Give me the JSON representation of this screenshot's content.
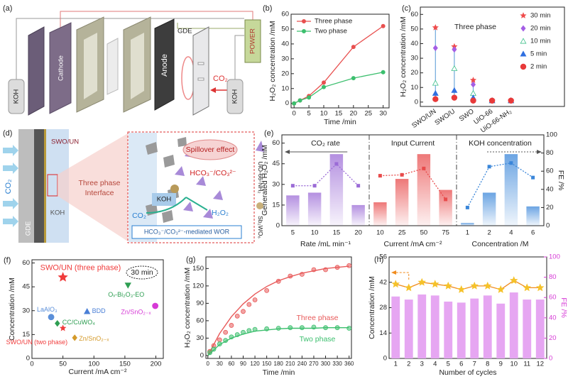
{
  "diagrams": {
    "a": {
      "panel": "(a)",
      "labels": [
        "KOH",
        "Cathode",
        "GDE",
        "Anode",
        "CO₂",
        "POWER",
        "KOH"
      ]
    },
    "d": {
      "panel": "(d)",
      "labels": [
        "SWO/UN",
        "CO₂",
        "Three phase",
        "Interface",
        "GDE",
        "KOH",
        "Spillover effect",
        "KOH",
        "HCO₃⁻/CO₃²⁻",
        "CO₂",
        "H₂O₂",
        "HCO₃⁻/CO₃²⁻-mediated WOR",
        "UiO-66-NH₂",
        "Sb₂WO₆"
      ]
    }
  },
  "chart_data": [
    {
      "type": "line",
      "panel": "(b)",
      "xlabel": "Time /min",
      "ylabel": "H₂O₂ concentration /mM",
      "x": [
        0,
        2,
        5,
        10,
        20,
        30
      ],
      "xlim": [
        -1,
        32
      ],
      "xticks": [
        0,
        5,
        10,
        15,
        20,
        25,
        30
      ],
      "ylim": [
        -3,
        60
      ],
      "yticks": [
        0,
        10,
        20,
        30,
        40,
        50,
        60
      ],
      "series": [
        {
          "name": "Three phase",
          "color": "#e8504f",
          "values": [
            0,
            2,
            5,
            14,
            38,
            52
          ]
        },
        {
          "name": "Two phase",
          "color": "#3cbf6e",
          "values": [
            0,
            2,
            4,
            11,
            17,
            21
          ]
        }
      ]
    },
    {
      "type": "dot",
      "panel": "(c)",
      "ylabel": "H₂O₂ concentration /mM",
      "annotation": "Three phase",
      "categories": [
        "SWO/UN",
        "SWO/U",
        "SWO",
        "UiO-66",
        "UiO-66-NH₂"
      ],
      "stem_color": "#6fa8dc",
      "ylim": [
        -3,
        65
      ],
      "yticks": [
        0,
        10,
        20,
        30,
        40,
        50,
        60
      ],
      "series": [
        {
          "name": "30 min",
          "color": "#ef4b4b",
          "marker": "star",
          "values": [
            51,
            38,
            15,
            1,
            1
          ]
        },
        {
          "name": "20 min",
          "color": "#a45ee5",
          "marker": "diamond",
          "values": [
            37,
            36,
            12,
            1,
            1
          ]
        },
        {
          "name": "10 min",
          "color": "#3cbf8a",
          "marker": "triangle-open",
          "values": [
            13,
            23,
            6,
            1,
            1
          ]
        },
        {
          "name": "5 min",
          "color": "#2f6fe0",
          "marker": "triangle",
          "values": [
            6,
            8,
            3,
            1,
            1
          ]
        },
        {
          "name": "2 min",
          "color": "#e83a3a",
          "marker": "circle",
          "values": [
            2,
            3,
            1,
            1,
            1
          ]
        }
      ]
    },
    {
      "type": "combo",
      "panel": "(e)",
      "ylabel": "Generated H₂O₂ /mM",
      "y2label": "FE /%",
      "ylim": [
        0,
        66
      ],
      "yticks": [
        0,
        15,
        30,
        45,
        60
      ],
      "y2lim": [
        0,
        100
      ],
      "y2ticks": [
        0,
        20,
        40,
        60,
        80,
        100
      ],
      "sections": [
        {
          "label": "CO₂ rate",
          "xlabel": "Rate /mL min⁻¹",
          "color": "#9b6bd6",
          "categories": [
            "5",
            "10",
            "15",
            "20"
          ],
          "values": [
            22,
            24,
            52,
            15
          ],
          "fe": [
            44,
            44,
            68,
            44
          ]
        },
        {
          "label": "Input Current",
          "xlabel": "Current /mA cm⁻²",
          "color": "#e84b4b",
          "categories": [
            "10",
            "25",
            "50",
            "75"
          ],
          "values": [
            17,
            34,
            52,
            26
          ],
          "fe": [
            55,
            56,
            63,
            29
          ]
        },
        {
          "label": "KOH concentration",
          "xlabel": "Concentration /M",
          "color": "#3a86d9",
          "categories": [
            "1",
            "2",
            "4",
            "6"
          ],
          "values": [
            2,
            24,
            52,
            14
          ],
          "fe": [
            20,
            65,
            69,
            53
          ]
        }
      ]
    },
    {
      "type": "scatter",
      "panel": "(f)",
      "xlabel": "Current /mA cm⁻²",
      "ylabel": "Concentration /mM",
      "annotation": "30 min",
      "xlim": [
        0,
        212
      ],
      "xticks": [
        0,
        50,
        100,
        150,
        200
      ],
      "ylim": [
        0,
        62
      ],
      "yticks": [
        0,
        15,
        30,
        45,
        60
      ],
      "labels": [
        "SWO/UN (three phase)",
        "SWO/UN (two phase)",
        "Oᵥ-Bi₂O₃-EO",
        "LaAlO₃",
        "BDD",
        "CC/CuWO₄",
        "Zn/SnO₂₋ₓ",
        "Zn/SnO₂₋ₓ"
      ],
      "x": [
        50,
        50,
        155,
        31,
        89,
        41,
        69,
        199
      ],
      "values": [
        51,
        19,
        46,
        26,
        29.5,
        22,
        13,
        33
      ],
      "colors": [
        "#f03c3c",
        "#f03c3c",
        "#2e9e52",
        "#5b8fd9",
        "#4a7fd6",
        "#2e9e52",
        "#d49a2a",
        "#d63ad6"
      ],
      "markers": [
        "star",
        "star",
        "triangle-down",
        "circle",
        "triangle",
        "diamond",
        "diamond",
        "circle"
      ]
    },
    {
      "type": "fit",
      "panel": "(g)",
      "xlabel": "Time /min",
      "ylabel": "H₂O₂ concentration /mM",
      "xlim": [
        -5,
        366
      ],
      "xticks": [
        0,
        30,
        60,
        90,
        120,
        150,
        180,
        210,
        240,
        270,
        300,
        330,
        360
      ],
      "ylim": [
        -5,
        170
      ],
      "yticks": [
        0,
        30,
        60,
        90,
        120,
        150
      ],
      "series": [
        {
          "name": "Three phase",
          "color": "#e85a5a",
          "x": [
            5,
            15,
            30,
            45,
            60,
            75,
            90,
            105,
            120,
            150,
            180,
            210,
            240,
            270,
            300,
            330,
            360
          ],
          "values": [
            7,
            17,
            27,
            40,
            52,
            68,
            76,
            88,
            96,
            112,
            128,
            137,
            140,
            148,
            148,
            152,
            155
          ],
          "fit_x": [
            0,
            30,
            60,
            90,
            120,
            150,
            180,
            210,
            240,
            270,
            300,
            330,
            360
          ],
          "fit_values": [
            0,
            38,
            67,
            89,
            106,
            119,
            129,
            136,
            142,
            146,
            150,
            152,
            154
          ]
        },
        {
          "name": "Two phase",
          "color": "#3cbf6e",
          "x": [
            5,
            15,
            30,
            45,
            60,
            75,
            90,
            105,
            120,
            150,
            180,
            210,
            240,
            270,
            300,
            330,
            360
          ],
          "values": [
            5,
            11,
            20,
            26,
            32,
            36,
            40,
            43,
            45,
            46,
            47,
            48,
            48,
            49,
            48,
            48,
            47
          ],
          "fit_x": [
            0,
            30,
            60,
            90,
            120,
            150,
            180,
            210,
            240,
            270,
            300,
            330,
            360
          ],
          "fit_values": [
            0,
            19,
            30,
            37,
            42,
            44,
            46,
            47,
            47,
            47,
            48,
            48,
            48
          ]
        }
      ]
    },
    {
      "type": "barline",
      "panel": "(h)",
      "xlabel": "Number of cycles",
      "ylabel": "Concentration /mM",
      "y2label": "FE /%",
      "categories": [
        "1",
        "2",
        "3",
        "4",
        "5",
        "6",
        "7",
        "8",
        "9",
        "10",
        "11",
        "12"
      ],
      "ylim": [
        0,
        56
      ],
      "yticks": [
        0,
        14,
        28,
        42,
        56
      ],
      "y2lim": [
        0,
        100
      ],
      "y2ticks": [
        0,
        20,
        40,
        60,
        80,
        100
      ],
      "y2color": "#d63ad6",
      "series": [
        {
          "color": "#f08c1e",
          "marker": "star",
          "values": [
            41,
            39,
            42,
            41,
            40,
            38,
            40,
            40,
            38,
            43,
            39,
            39
          ]
        },
        {
          "color": "#e6a6f2",
          "axis": "y2",
          "values": [
            61,
            58,
            63,
            62,
            56,
            55,
            59,
            62,
            54,
            65,
            58,
            58
          ]
        }
      ]
    }
  ]
}
